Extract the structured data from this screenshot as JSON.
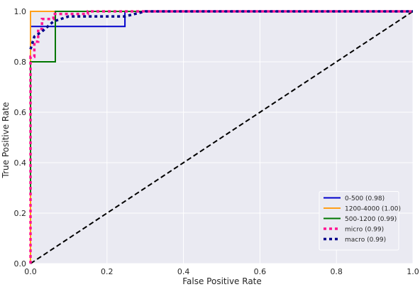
{
  "chart_data": {
    "type": "line",
    "title": "",
    "xlabel": "False Positive Rate",
    "ylabel": "True Positive Rate",
    "xlim": [
      0.0,
      1.0
    ],
    "ylim": [
      0.0,
      1.0
    ],
    "xticks": [
      "0.0",
      "0.2",
      "0.4",
      "0.6",
      "0.8",
      "1.0"
    ],
    "yticks": [
      "0.0",
      "0.2",
      "0.4",
      "0.6",
      "0.8",
      "1.0"
    ],
    "grid": true,
    "background": "#eaeaf2",
    "legend_position": "lower-right",
    "series": [
      {
        "name": "0-500 (0.98)",
        "color": "#0000cc",
        "style": "solid",
        "x": [
          0.0,
          0.0,
          0.0,
          0.247,
          0.247,
          1.0
        ],
        "y": [
          0.0,
          0.85,
          0.94,
          0.94,
          1.0,
          1.0
        ]
      },
      {
        "name": "1200-4000 (1.00)",
        "color": "#ff9f1a",
        "style": "solid",
        "x": [
          0.0,
          0.0,
          1.0
        ],
        "y": [
          0.0,
          1.0,
          1.0
        ]
      },
      {
        "name": "500-1200 (0.99)",
        "color": "#007700",
        "style": "solid",
        "x": [
          0.0,
          0.0,
          0.0,
          0.065,
          0.065,
          1.0
        ],
        "y": [
          0.27,
          0.8,
          0.8,
          0.8,
          1.0,
          1.0
        ]
      },
      {
        "name": "micro (0.99)",
        "color": "#ff1493",
        "style": "dotted",
        "x": [
          0.0,
          0.0,
          0.0,
          0.01,
          0.01,
          0.02,
          0.02,
          0.03,
          0.03,
          0.06,
          0.06,
          0.15,
          0.15,
          1.0
        ],
        "y": [
          0.0,
          0.52,
          0.82,
          0.82,
          0.88,
          0.88,
          0.93,
          0.93,
          0.97,
          0.97,
          0.99,
          0.99,
          1.0,
          1.0
        ]
      },
      {
        "name": "macro (0.99)",
        "color": "#00008b",
        "style": "dotted",
        "x": [
          0.0,
          0.01,
          0.03,
          0.06,
          0.1,
          0.247,
          0.3,
          1.0
        ],
        "y": [
          0.85,
          0.9,
          0.92,
          0.96,
          0.98,
          0.98,
          1.0,
          1.0
        ]
      }
    ],
    "reference_line": {
      "color": "#000000",
      "style": "dashed",
      "x": [
        0.0,
        1.0
      ],
      "y": [
        0.0,
        1.0
      ]
    }
  }
}
